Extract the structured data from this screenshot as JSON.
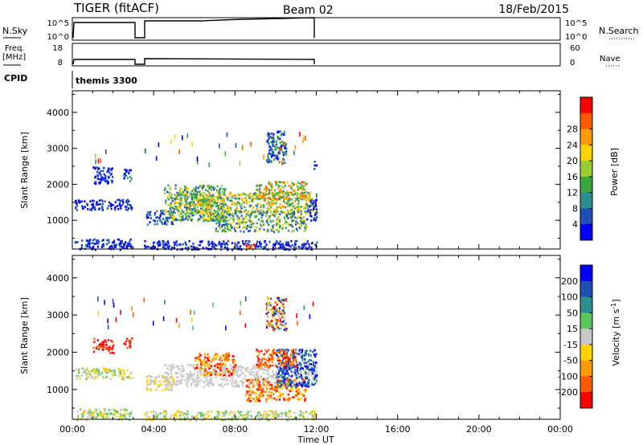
{
  "header": {
    "title": "TIGER (fitACF)",
    "beam": "Beam 02",
    "date": "18/Feb/2015"
  },
  "panels": {
    "nsky": {
      "left_label": "N.Sky",
      "left_ticks": [
        "10^5",
        "10^0"
      ],
      "right_ticks": [
        "10^5",
        "10^0"
      ],
      "right_label": "N.Search"
    },
    "freq": {
      "left_label_1": "Freq.",
      "left_label_2": "[MHz]",
      "left_ticks": [
        "18",
        "8"
      ],
      "right_ticks": [
        "60",
        "0"
      ],
      "right_label": "Nave"
    },
    "cpid": {
      "label": "CPID",
      "value": "themis 3300"
    }
  },
  "chart_data": [
    {
      "type": "heatmap",
      "name": "power",
      "ylabel": "Slant Range [km]",
      "xlabel": "",
      "x_ticks": [
        "00:00",
        "04:00",
        "08:00",
        "12:00",
        "16:00",
        "20:00",
        "00:00"
      ],
      "xlim_hours": [
        0,
        24
      ],
      "y_ticks": [
        1000,
        2000,
        3000,
        4000
      ],
      "ylim": [
        200,
        4600
      ],
      "colorbar": {
        "label": "Power [dB]",
        "ticks": [
          "4",
          "8",
          "12",
          "16",
          "20",
          "24",
          "28"
        ],
        "colors": [
          "#0000ff",
          "#1f4fb8",
          "#2b8f8f",
          "#3aa83a",
          "#9acd32",
          "#ffd200",
          "#ff9a00",
          "#ff5a00",
          "#ff0000"
        ]
      },
      "regions": [
        {
          "t0": 0.1,
          "t1": 2.9,
          "r0": 200,
          "r1": 500,
          "c": [
            0,
            1
          ]
        },
        {
          "t0": 0.1,
          "t1": 2.9,
          "r0": 1300,
          "r1": 1600,
          "c": [
            0,
            1
          ]
        },
        {
          "t0": 1.0,
          "t1": 2.0,
          "r0": 2000,
          "r1": 2500,
          "c": [
            0,
            1
          ]
        },
        {
          "t0": 2.5,
          "t1": 2.9,
          "r0": 2100,
          "r1": 2500,
          "c": [
            0,
            2
          ]
        },
        {
          "t0": 3.5,
          "t1": 12.0,
          "r0": 200,
          "r1": 450,
          "c": [
            0,
            1
          ]
        },
        {
          "t0": 3.6,
          "t1": 5.0,
          "r0": 900,
          "r1": 1300,
          "c": [
            0,
            2
          ]
        },
        {
          "t0": 4.5,
          "t1": 7.5,
          "r0": 1000,
          "r1": 2000,
          "c": [
            1,
            5
          ]
        },
        {
          "t0": 5.0,
          "t1": 12.0,
          "r0": 1200,
          "r1": 1800,
          "c": [
            2,
            6
          ]
        },
        {
          "t0": 7.0,
          "t1": 11.5,
          "r0": 700,
          "r1": 1300,
          "c": [
            1,
            5
          ]
        },
        {
          "t0": 9.0,
          "t1": 11.5,
          "r0": 1600,
          "r1": 2100,
          "c": [
            2,
            7
          ]
        },
        {
          "t0": 11.5,
          "t1": 12.0,
          "r0": 1000,
          "r1": 1600,
          "c": [
            0,
            1
          ]
        },
        {
          "t0": 11.8,
          "t1": 12.0,
          "r0": 2400,
          "r1": 2700,
          "c": [
            0,
            1
          ]
        },
        {
          "t0": 9.5,
          "t1": 10.5,
          "r0": 2600,
          "r1": 3500,
          "c": [
            0,
            3
          ]
        },
        {
          "t0": 8.5,
          "t1": 9.2,
          "r0": 200,
          "r1": 350,
          "c": [
            6,
            8
          ]
        }
      ]
    },
    {
      "type": "heatmap",
      "name": "velocity",
      "ylabel": "Slant Range [km]",
      "xlabel": "Time UT",
      "x_ticks": [
        "00:00",
        "04:00",
        "08:00",
        "12:00",
        "16:00",
        "20:00",
        "00:00"
      ],
      "xlim_hours": [
        0,
        24
      ],
      "y_ticks": [
        1000,
        2000,
        3000,
        4000
      ],
      "ylim": [
        200,
        4600
      ],
      "colorbar": {
        "label": "Velocity [m s^-1]",
        "ticks": [
          "200",
          "100",
          "50",
          "15",
          "-15",
          "-50",
          "-100",
          "-200"
        ],
        "colors": [
          "#0000ff",
          "#1f4fb8",
          "#2b8f8f",
          "#5bc85b",
          "#c8c8c8",
          "#ffd200",
          "#ff9a00",
          "#ff5a00",
          "#ff0000"
        ]
      },
      "regions": [
        {
          "t0": 0.1,
          "t1": 2.9,
          "r0": 200,
          "r1": 500,
          "c": [
            3,
            5
          ]
        },
        {
          "t0": 0.1,
          "t1": 2.9,
          "r0": 1300,
          "r1": 1600,
          "c": [
            3,
            5
          ]
        },
        {
          "t0": 1.0,
          "t1": 2.0,
          "r0": 2000,
          "r1": 2400,
          "c": [
            7,
            8
          ]
        },
        {
          "t0": 2.5,
          "t1": 2.9,
          "r0": 2100,
          "r1": 2400,
          "c": [
            7,
            8
          ]
        },
        {
          "t0": 3.5,
          "t1": 12.0,
          "r0": 200,
          "r1": 450,
          "c": [
            3,
            5
          ]
        },
        {
          "t0": 3.6,
          "t1": 5.0,
          "r0": 1000,
          "r1": 1400,
          "c": [
            4,
            5
          ]
        },
        {
          "t0": 4.5,
          "t1": 12.0,
          "r0": 1100,
          "r1": 1700,
          "c": [
            4,
            4
          ]
        },
        {
          "t0": 6.0,
          "t1": 8.0,
          "r0": 1400,
          "r1": 2000,
          "c": [
            5,
            8
          ]
        },
        {
          "t0": 8.5,
          "t1": 11.5,
          "r0": 700,
          "r1": 1300,
          "c": [
            5,
            8
          ]
        },
        {
          "t0": 10.0,
          "t1": 12.0,
          "r0": 1100,
          "r1": 2100,
          "c": [
            0,
            2
          ]
        },
        {
          "t0": 9.0,
          "t1": 11.0,
          "r0": 1600,
          "r1": 2100,
          "c": [
            6,
            8
          ]
        },
        {
          "t0": 9.5,
          "t1": 10.5,
          "r0": 2600,
          "r1": 3500,
          "c": [
            0,
            8
          ]
        }
      ]
    }
  ]
}
